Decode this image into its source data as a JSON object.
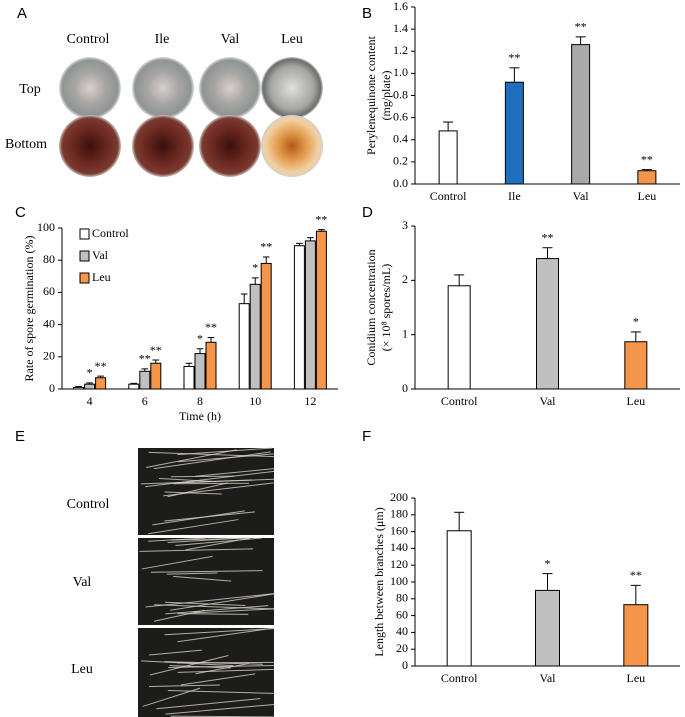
{
  "panel_a": {
    "label": "A",
    "columns": [
      "Control",
      "Ile",
      "Val",
      "Leu"
    ],
    "rows": [
      "Top",
      "Bottom"
    ]
  },
  "panel_e": {
    "label": "E",
    "rows": [
      "Control",
      "Val",
      "Leu"
    ]
  },
  "chart_data": [
    {
      "type": "bar",
      "label": "B",
      "ylabel": [
        "Perylenequinone content",
        "(mg/plate)"
      ],
      "categories": [
        "Control",
        "Ile",
        "Val",
        "Leu"
      ],
      "values": [
        0.48,
        0.92,
        1.26,
        0.12
      ],
      "errors": [
        0.08,
        0.13,
        0.07,
        0.01
      ],
      "colors": [
        "#ffffff",
        "#1f6fbf",
        "#a9a9a9",
        "#f4954a"
      ],
      "annotations": [
        null,
        "**",
        "**",
        "**"
      ],
      "ylim": [
        0,
        1.6
      ],
      "yticks": [
        {
          "value": 0,
          "label": "0.0"
        },
        0.2,
        0.4,
        0.6,
        0.8,
        {
          "value": 1,
          "label": "1.0"
        },
        1.2,
        1.4,
        1.6
      ]
    },
    {
      "type": "bar",
      "label": "C",
      "ylabel": "Rate of spore germination (%)",
      "xlabel": "Time (h)",
      "categories": [
        "4",
        "6",
        "8",
        "10",
        "12"
      ],
      "series": [
        {
          "name": "Control",
          "color": "#ffffff",
          "values": [
            1,
            3,
            14,
            53,
            89
          ],
          "errors": [
            0.5,
            0.5,
            2,
            6,
            1.5
          ],
          "annotations": [
            null,
            null,
            null,
            null,
            null
          ]
        },
        {
          "name": "Val",
          "color": "#c0c0c0",
          "values": [
            3,
            11,
            22,
            65,
            92
          ],
          "errors": [
            0.8,
            1.5,
            3,
            4,
            2
          ],
          "annotations": [
            "*",
            "**",
            "*",
            "*",
            null
          ]
        },
        {
          "name": "Leu",
          "color": "#f4954a",
          "values": [
            7,
            16,
            29,
            78,
            98
          ],
          "errors": [
            1,
            2,
            3,
            4,
            1
          ],
          "annotations": [
            "**",
            "**",
            "**",
            "**",
            "**"
          ]
        }
      ],
      "ylim": [
        0,
        100
      ],
      "yticks": [
        0,
        20,
        40,
        60,
        80,
        100
      ],
      "legend": "upper left"
    },
    {
      "type": "bar",
      "label": "D",
      "ylabel": [
        "Conidium concentration",
        "(× 10⁸ spores/mL)"
      ],
      "categories": [
        "Control",
        "Val",
        "Leu"
      ],
      "values": [
        1.9,
        2.4,
        0.87
      ],
      "errors": [
        0.2,
        0.2,
        0.18
      ],
      "colors": [
        "#ffffff",
        "#c0c0c0",
        "#f4954a"
      ],
      "annotations": [
        null,
        "**",
        "*"
      ],
      "ylim": [
        0,
        3
      ],
      "yticks": [
        0,
        1,
        2,
        3
      ]
    },
    {
      "type": "bar",
      "label": "F",
      "ylabel": "Length between branches (μm)",
      "categories": [
        "Control",
        "Val",
        "Leu"
      ],
      "values": [
        161,
        90,
        73
      ],
      "errors": [
        22,
        20,
        23
      ],
      "colors": [
        "#ffffff",
        "#c0c0c0",
        "#f4954a"
      ],
      "annotations": [
        null,
        "*",
        "**"
      ],
      "ylim": [
        0,
        200
      ],
      "yticks": [
        0,
        20,
        40,
        60,
        80,
        100,
        120,
        140,
        160,
        180,
        200
      ]
    }
  ]
}
